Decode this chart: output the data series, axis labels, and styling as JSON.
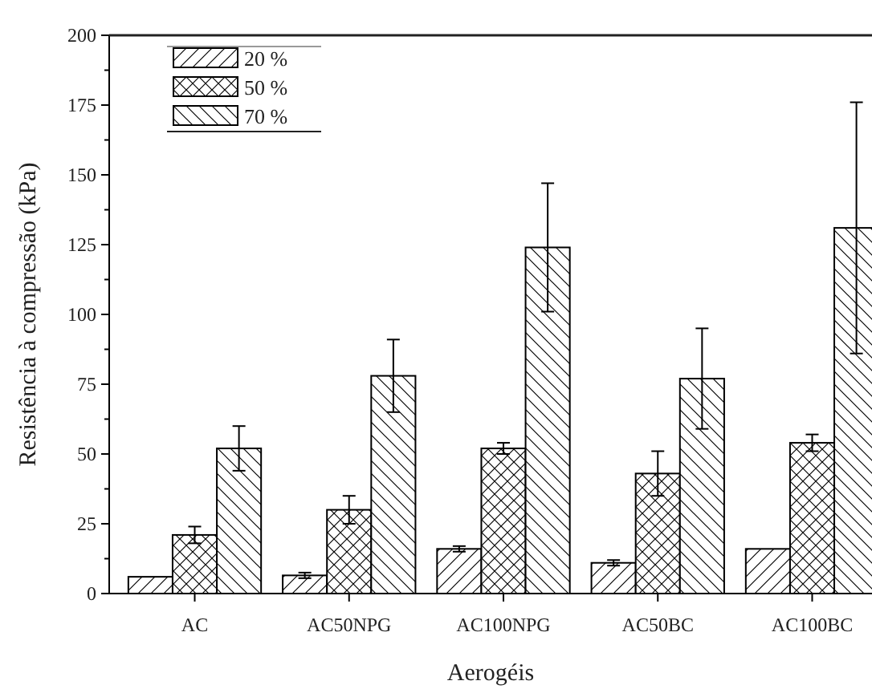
{
  "chart_data": {
    "type": "bar",
    "xlabel": "Aerogéis",
    "ylabel": "Resistência à compressão (kPa)",
    "categories": [
      "AC",
      "AC50NPG",
      "AC100NPG",
      "AC50BC",
      "AC100BC"
    ],
    "series": [
      {
        "name": "20 %",
        "color": "#000000",
        "values": [
          6,
          6.5,
          16,
          11,
          16
        ],
        "errors": [
          null,
          1,
          1,
          1,
          null
        ]
      },
      {
        "name": "50 %",
        "color": "#000000",
        "values": [
          21,
          30,
          52,
          43,
          54
        ],
        "errors": [
          3,
          5,
          2,
          8,
          3
        ]
      },
      {
        "name": "70 %",
        "color": "#000000",
        "values": [
          52,
          78,
          124,
          77,
          131
        ],
        "errors": [
          8,
          13,
          23,
          18,
          45
        ]
      }
    ],
    "ylim": [
      0,
      200
    ],
    "yticks": [
      0,
      25,
      50,
      75,
      100,
      125,
      150,
      175,
      200
    ],
    "grid": false,
    "legend": "top left"
  }
}
